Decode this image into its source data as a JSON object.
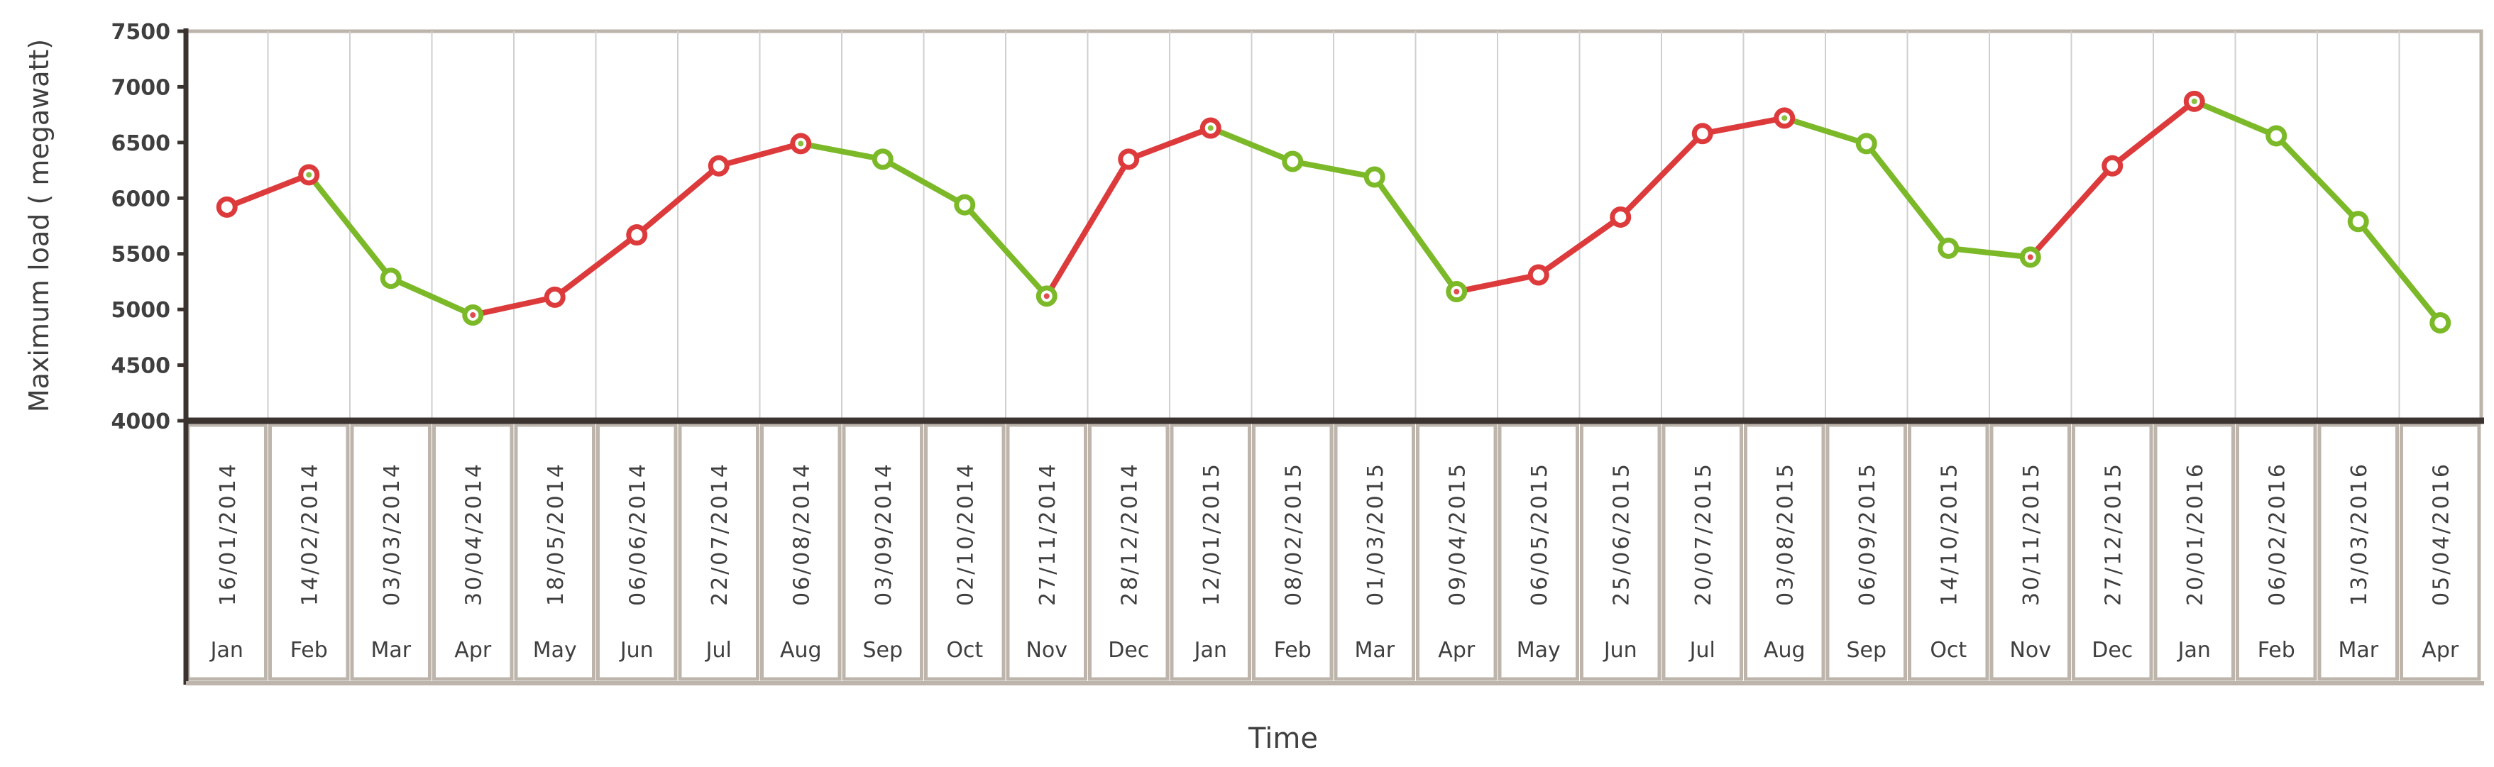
{
  "chart_data": {
    "type": "line",
    "ylabel": "Maximum load ( megawatt)",
    "xlabel": "Time",
    "ylim": [
      4000,
      7500
    ],
    "yticks": [
      4000,
      4500,
      5000,
      5500,
      6000,
      6500,
      7000,
      7500
    ],
    "grid": "vertical",
    "colors": {
      "rising": "#dd3a3c",
      "falling": "#7cb928",
      "frame": "#bdb5ac",
      "axis": "#3a3330",
      "grid": "#cfcfcf"
    },
    "points": [
      {
        "date": "16/01/2014",
        "month": "Jan",
        "value": 5920
      },
      {
        "date": "14/02/2014",
        "month": "Feb",
        "value": 6210
      },
      {
        "date": "03/03/2014",
        "month": "Mar",
        "value": 5280
      },
      {
        "date": "30/04/2014",
        "month": "Apr",
        "value": 4950
      },
      {
        "date": "18/05/2014",
        "month": "May",
        "value": 5110
      },
      {
        "date": "06/06/2014",
        "month": "Jun",
        "value": 5670
      },
      {
        "date": "22/07/2014",
        "month": "Jul",
        "value": 6290
      },
      {
        "date": "06/08/2014",
        "month": "Aug",
        "value": 6490
      },
      {
        "date": "03/09/2014",
        "month": "Sep",
        "value": 6350
      },
      {
        "date": "02/10/2014",
        "month": "Oct",
        "value": 5940
      },
      {
        "date": "27/11/2014",
        "month": "Nov",
        "value": 5120
      },
      {
        "date": "28/12/2014",
        "month": "Dec",
        "value": 6350
      },
      {
        "date": "12/01/2015",
        "month": "Jan",
        "value": 6630
      },
      {
        "date": "08/02/2015",
        "month": "Feb",
        "value": 6330
      },
      {
        "date": "01/03/2015",
        "month": "Mar",
        "value": 6190
      },
      {
        "date": "09/04/2015",
        "month": "Apr",
        "value": 5160
      },
      {
        "date": "06/05/2015",
        "month": "May",
        "value": 5310
      },
      {
        "date": "25/06/2015",
        "month": "Jun",
        "value": 5830
      },
      {
        "date": "20/07/2015",
        "month": "Jul",
        "value": 6580
      },
      {
        "date": "03/08/2015",
        "month": "Aug",
        "value": 6720
      },
      {
        "date": "06/09/2015",
        "month": "Sep",
        "value": 6490
      },
      {
        "date": "14/10/2015",
        "month": "Oct",
        "value": 5550
      },
      {
        "date": "30/11/2015",
        "month": "Nov",
        "value": 5470
      },
      {
        "date": "27/12/2015",
        "month": "Dec",
        "value": 6290
      },
      {
        "date": "20/01/2016",
        "month": "Jan",
        "value": 6870
      },
      {
        "date": "06/02/2016",
        "month": "Feb",
        "value": 6560
      },
      {
        "date": "13/03/2016",
        "month": "Mar",
        "value": 5790
      },
      {
        "date": "05/04/2016",
        "month": "Apr",
        "value": 4880
      }
    ]
  }
}
